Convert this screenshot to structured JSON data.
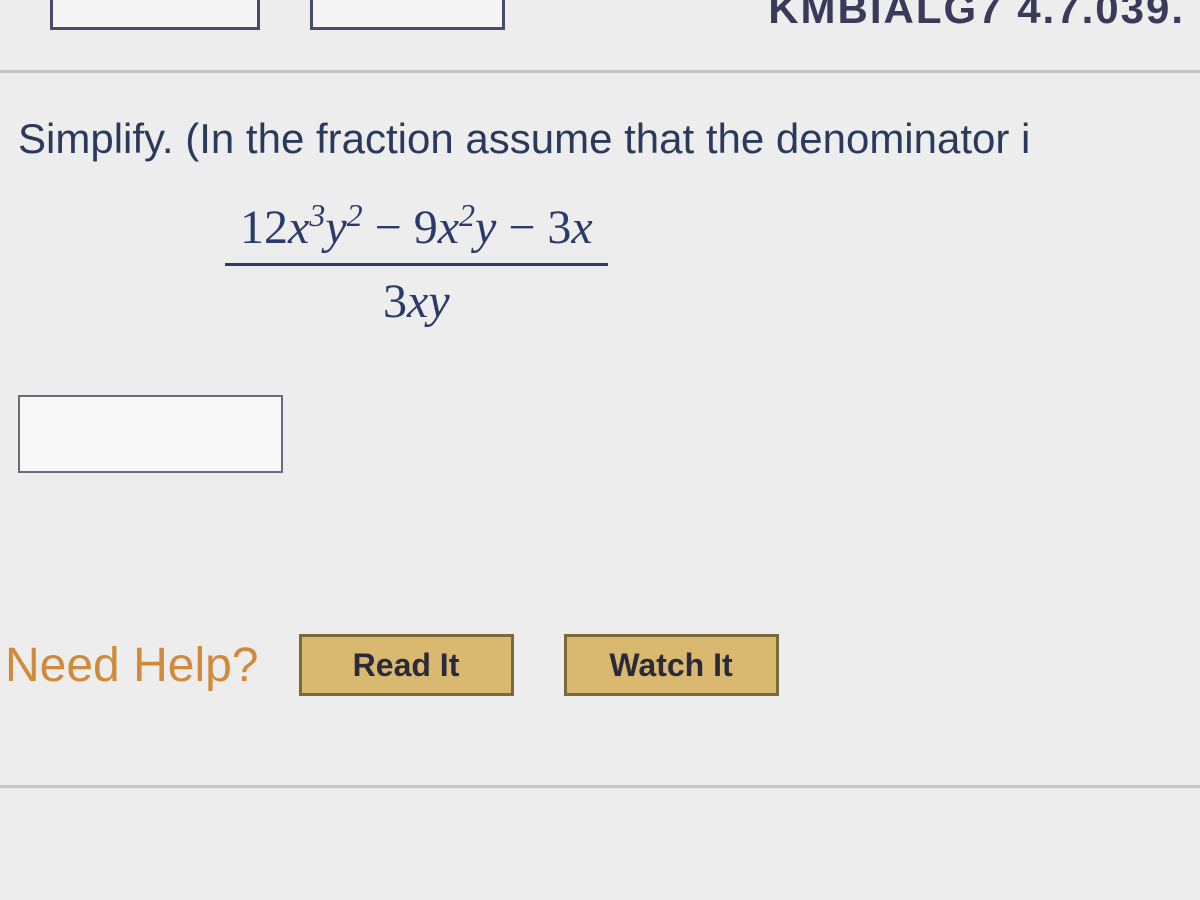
{
  "header": {
    "partial_reference": "KMBIALG7 4.7.039."
  },
  "question": {
    "prompt": "Simplify. (In the fraction assume that the denominator i",
    "expression": {
      "numerator_terms": [
        {
          "coef": "12",
          "var": "x",
          "exp": "3",
          "var2": "y",
          "exp2": "2"
        },
        {
          "op": " − ",
          "coef": "9",
          "var": "x",
          "exp": "2",
          "var2": "y",
          "exp2": ""
        },
        {
          "op": " − ",
          "coef": "3",
          "var": "x",
          "exp": "",
          "var2": "",
          "exp2": ""
        }
      ],
      "denominator": "3xy"
    }
  },
  "answer": {
    "value": ""
  },
  "help": {
    "label": "Need Help?",
    "read_btn": "Read It",
    "watch_btn": "Watch It"
  },
  "styling": {
    "background": "#ededed",
    "text_color": "#2a3a5a",
    "help_label_color": "#d08a3a",
    "button_bg": "#d9b870",
    "button_border": "#7a6a3a",
    "divider_color": "#c5c5c5",
    "input_border": "#6a6a7a",
    "prompt_fontsize": 42,
    "math_fontsize": 48,
    "help_fontsize": 48,
    "button_fontsize": 32
  }
}
